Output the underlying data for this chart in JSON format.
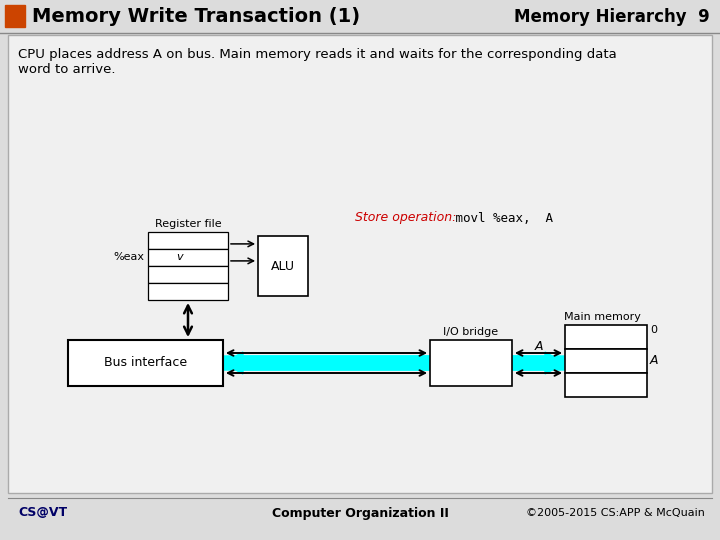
{
  "title_left": "Memory Write Transaction (1)",
  "title_right": "Memory Hierarchy  9",
  "bullet_color": "#CC4400",
  "slide_bg_color": "#DCDCDC",
  "content_bg_color": "#F0F0F0",
  "desc_text": "CPU places address A on bus. Main memory reads it and waits for the corresponding data\nword to arrive.",
  "store_op_label": "Store operation:",
  "store_op_code": " movl %eax,  A",
  "store_op_label_color": "#CC0000",
  "store_op_code_color": "#000000",
  "footer_left": "CS@VT",
  "footer_center": "Computer Organization II",
  "footer_right": "©2005-2015 CS:APP & McQuain",
  "cyan_color": "#00FFFF",
  "black": "#000000",
  "white": "#FFFFFF"
}
